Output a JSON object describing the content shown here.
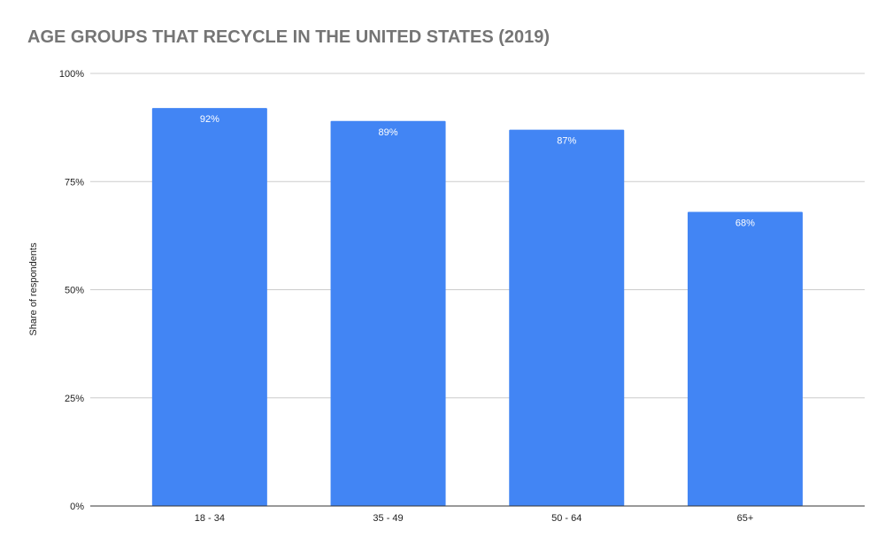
{
  "chart_data": {
    "type": "bar",
    "title": "AGE GROUPS THAT RECYCLE IN THE UNITED STATES (2019)",
    "xlabel": "",
    "ylabel": "Share of respondents",
    "categories": [
      "18 - 34",
      "35 - 49",
      "50 - 64",
      "65+"
    ],
    "values": [
      92,
      89,
      87,
      68
    ],
    "data_labels": [
      "92%",
      "89%",
      "87%",
      "68%"
    ],
    "ylim": [
      0,
      100
    ],
    "yticks": [
      0,
      25,
      50,
      75,
      100
    ],
    "ytick_labels": [
      "0%",
      "25%",
      "50%",
      "75%",
      "100%"
    ],
    "grid": true,
    "legend": "none",
    "bar_color": "#4285f4",
    "gridline_color": "#cccccc",
    "title_color": "#757575"
  }
}
